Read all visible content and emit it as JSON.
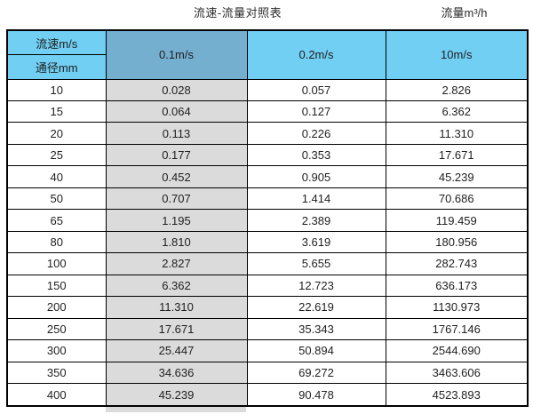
{
  "header": {
    "title": "流速-流量对照表",
    "unit_label": "流量m³/h"
  },
  "table": {
    "corner_top": "流速m/s",
    "corner_bottom": "通径mm",
    "speed_columns": [
      "0.1m/s",
      "0.2m/s",
      "10m/s"
    ],
    "rows": [
      {
        "diameter": "10",
        "values": [
          "0.028",
          "0.057",
          "2.826"
        ]
      },
      {
        "diameter": "15",
        "values": [
          "0.064",
          "0.127",
          "6.362"
        ]
      },
      {
        "diameter": "20",
        "values": [
          "0.113",
          "0.226",
          "11.310"
        ]
      },
      {
        "diameter": "25",
        "values": [
          "0.177",
          "0.353",
          "17.671"
        ]
      },
      {
        "diameter": "40",
        "values": [
          "0.452",
          "0.905",
          "45.239"
        ]
      },
      {
        "diameter": "50",
        "values": [
          "0.707",
          "1.414",
          "70.686"
        ]
      },
      {
        "diameter": "65",
        "values": [
          "1.195",
          "2.389",
          "119.459"
        ]
      },
      {
        "diameter": "80",
        "values": [
          "1.810",
          "3.619",
          "180.956"
        ]
      },
      {
        "diameter": "100",
        "values": [
          "2.827",
          "5.655",
          "282.743"
        ]
      },
      {
        "diameter": "150",
        "values": [
          "6.362",
          "12.723",
          "636.173"
        ]
      },
      {
        "diameter": "200",
        "values": [
          "11.310",
          "22.619",
          "1130.973"
        ]
      },
      {
        "diameter": "250",
        "values": [
          "17.671",
          "35.343",
          "1767.146"
        ]
      },
      {
        "diameter": "300",
        "values": [
          "25.447",
          "50.894",
          "2544.690"
        ]
      },
      {
        "diameter": "350",
        "values": [
          "34.636",
          "69.272",
          "3463.606"
        ]
      },
      {
        "diameter": "400",
        "values": [
          "45.239",
          "90.478",
          "4523.893"
        ]
      }
    ]
  },
  "colors": {
    "header_light_blue": "#70CFF2",
    "header_dark_blue": "#74AFD0",
    "highlight_column_gray": "#DBDBDB",
    "border_black": "#000000"
  },
  "chart_data": {
    "type": "table",
    "title": "流速-流量对照表",
    "value_unit": "流量m³/h",
    "row_header_label": "通径mm",
    "column_header_label": "流速m/s",
    "categories": [
      10,
      15,
      20,
      25,
      40,
      50,
      65,
      80,
      100,
      150,
      200,
      250,
      300,
      350,
      400
    ],
    "series": [
      {
        "name": "0.1m/s",
        "values": [
          0.028,
          0.064,
          0.113,
          0.177,
          0.452,
          0.707,
          1.195,
          1.81,
          2.827,
          6.362,
          11.31,
          17.671,
          25.447,
          34.636,
          45.239
        ]
      },
      {
        "name": "0.2m/s",
        "values": [
          0.057,
          0.127,
          0.226,
          0.353,
          0.905,
          1.414,
          2.389,
          3.619,
          5.655,
          12.723,
          22.619,
          35.343,
          50.894,
          69.272,
          90.478
        ]
      },
      {
        "name": "10m/s",
        "values": [
          2.826,
          6.362,
          11.31,
          17.671,
          45.239,
          70.686,
          119.459,
          180.956,
          282.743,
          636.173,
          1130.973,
          1767.146,
          2544.69,
          3463.606,
          4523.893
        ]
      }
    ]
  }
}
